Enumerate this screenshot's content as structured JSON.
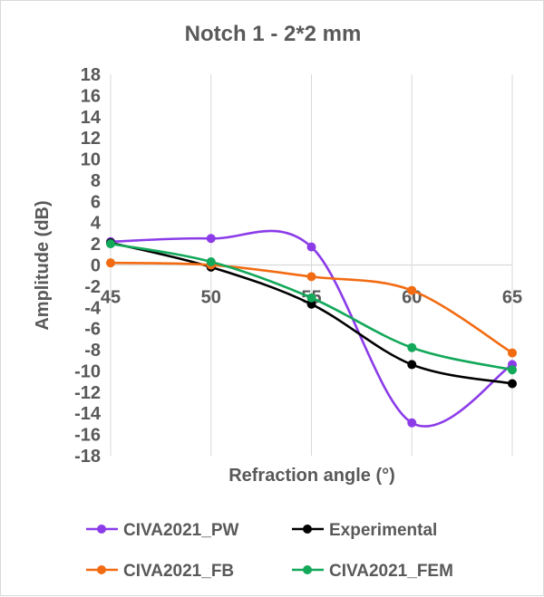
{
  "chart_data": {
    "type": "line",
    "title": "Notch 1 - 2*2 mm",
    "xlabel": "Refraction angle (°)",
    "ylabel": "Amplitude (dB)",
    "x": [
      45,
      50,
      55,
      60,
      65
    ],
    "xlim": [
      45,
      65
    ],
    "ylim": [
      -18,
      18
    ],
    "ytick_step": 2,
    "yticks": [
      "18",
      "16",
      "14",
      "12",
      "10",
      "8",
      "6",
      "4",
      "2",
      "0",
      "-2",
      "-4",
      "-6",
      "-8",
      "-10",
      "-12",
      "-14",
      "-16",
      "-18"
    ],
    "xticks": [
      "45",
      "50",
      "55",
      "60",
      "65"
    ],
    "grid": "vertical",
    "legend_position": "bottom",
    "smooth": true,
    "series": [
      {
        "name": "CIVA2021_PW",
        "color": "#8b3ce8",
        "values": [
          2.2,
          2.5,
          1.7,
          -14.9,
          -9.4
        ]
      },
      {
        "name": "Experimental",
        "color": "#000000",
        "values": [
          2.1,
          -0.2,
          -3.7,
          -9.4,
          -11.2
        ]
      },
      {
        "name": "CIVA2021_FB",
        "color": "#f26b12",
        "values": [
          0.2,
          0.0,
          -1.1,
          -2.4,
          -8.3
        ]
      },
      {
        "name": "CIVA2021_FEM",
        "color": "#13a85a",
        "values": [
          2.0,
          0.3,
          -3.1,
          -7.8,
          -9.9
        ]
      }
    ]
  }
}
